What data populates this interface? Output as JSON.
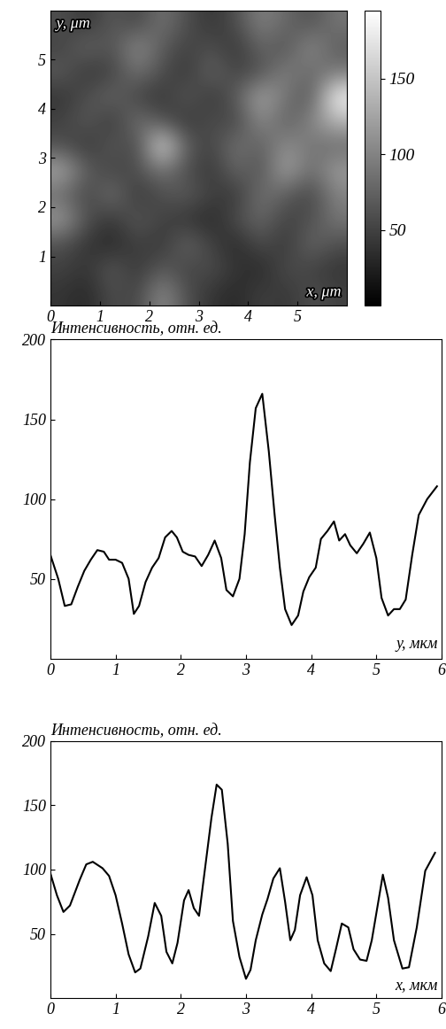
{
  "chart_data": [
    {
      "type": "heatmap",
      "xlabel": "x, μm",
      "ylabel": "y, μm",
      "color": "gray",
      "xlim": [
        0,
        6
      ],
      "ylim": [
        0,
        6
      ],
      "xticks": [
        0,
        1,
        2,
        3,
        4,
        5
      ],
      "yticks": [
        1,
        2,
        3,
        4,
        5
      ],
      "cells": [
        [
          40,
          30,
          60,
          50,
          110,
          60,
          40,
          30,
          50,
          40,
          60,
          50
        ],
        [
          50,
          40,
          70,
          40,
          70,
          50,
          60,
          40,
          30,
          60,
          50,
          40
        ],
        [
          60,
          40,
          30,
          50,
          40,
          80,
          50,
          30,
          60,
          40,
          80,
          60
        ],
        [
          120,
          60,
          40,
          70,
          50,
          40,
          30,
          60,
          80,
          50,
          60,
          90
        ],
        [
          80,
          50,
          90,
          40,
          60,
          70,
          50,
          40,
          90,
          70,
          50,
          100
        ],
        [
          130,
          70,
          50,
          60,
          90,
          60,
          40,
          80,
          60,
          130,
          80,
          120
        ],
        [
          60,
          40,
          70,
          50,
          180,
          70,
          50,
          90,
          70,
          110,
          90,
          80
        ],
        [
          50,
          70,
          40,
          90,
          60,
          40,
          60,
          50,
          110,
          70,
          100,
          140
        ],
        [
          40,
          60,
          80,
          50,
          40,
          70,
          40,
          70,
          130,
          90,
          60,
          190
        ],
        [
          70,
          40,
          50,
          90,
          60,
          40,
          80,
          50,
          60,
          100,
          80,
          90
        ],
        [
          50,
          80,
          60,
          110,
          70,
          50,
          60,
          40,
          80,
          60,
          110,
          70
        ],
        [
          60,
          40,
          70,
          50,
          90,
          60,
          40,
          60,
          100,
          80,
          60,
          90
        ]
      ],
      "colorbar_range": [
        0,
        195
      ],
      "colorbar_ticks": [
        50,
        100,
        150
      ]
    },
    {
      "type": "line",
      "ylabel": "Интенсивность, отн. ед.",
      "xlabel": "y, мкм",
      "color": "#000000",
      "xlim": [
        0,
        6
      ],
      "ylim": [
        0,
        200
      ],
      "xticks": [
        0,
        1,
        2,
        3,
        4,
        5,
        6
      ],
      "yticks": [
        50,
        100,
        150,
        200
      ],
      "x": [
        0,
        0.12,
        0.22,
        0.32,
        0.42,
        0.52,
        0.62,
        0.72,
        0.82,
        0.9,
        1.0,
        1.1,
        1.2,
        1.28,
        1.36,
        1.46,
        1.56,
        1.66,
        1.76,
        1.86,
        1.94,
        2.03,
        2.12,
        2.22,
        2.32,
        2.42,
        2.52,
        2.62,
        2.7,
        2.8,
        2.9,
        2.98,
        3.06,
        3.15,
        3.25,
        3.35,
        3.44,
        3.52,
        3.6,
        3.7,
        3.8,
        3.88,
        3.97,
        4.07,
        4.15,
        4.25,
        4.35,
        4.43,
        4.52,
        4.6,
        4.7,
        4.8,
        4.9,
        5.0,
        5.08,
        5.18,
        5.27,
        5.36,
        5.45,
        5.55,
        5.65,
        5.78,
        5.93
      ],
      "values": [
        65,
        50,
        33,
        34,
        45,
        55,
        62,
        68,
        67,
        62,
        62,
        60,
        50,
        28,
        33,
        48,
        57,
        63,
        76,
        80,
        76,
        67,
        65,
        64,
        58,
        65,
        74,
        63,
        43,
        39,
        50,
        78,
        123,
        157,
        166,
        130,
        90,
        57,
        31,
        21,
        27,
        42,
        51,
        57,
        75,
        80,
        86,
        74,
        78,
        71,
        66,
        72,
        79,
        63,
        38,
        27,
        31,
        31,
        37,
        65,
        90,
        100,
        108
      ]
    },
    {
      "type": "line",
      "ylabel": "Интенсивность, отн. ед.",
      "xlabel": "x, мкм",
      "color": "#000000",
      "xlim": [
        0,
        6
      ],
      "ylim": [
        0,
        200
      ],
      "xticks": [
        0,
        1,
        2,
        3,
        4,
        5,
        6
      ],
      "yticks": [
        50,
        100,
        150,
        200
      ],
      "x": [
        0,
        0.1,
        0.2,
        0.3,
        0.45,
        0.55,
        0.65,
        0.8,
        0.9,
        1.0,
        1.1,
        1.2,
        1.3,
        1.38,
        1.5,
        1.6,
        1.7,
        1.78,
        1.87,
        1.95,
        2.05,
        2.12,
        2.2,
        2.28,
        2.37,
        2.47,
        2.55,
        2.63,
        2.72,
        2.8,
        2.9,
        3.0,
        3.07,
        3.15,
        3.25,
        3.33,
        3.42,
        3.52,
        3.6,
        3.68,
        3.75,
        3.83,
        3.93,
        4.02,
        4.1,
        4.2,
        4.3,
        4.38,
        4.47,
        4.57,
        4.65,
        4.75,
        4.85,
        4.93,
        5.02,
        5.1,
        5.18,
        5.27,
        5.4,
        5.5,
        5.62,
        5.75,
        5.9
      ],
      "values": [
        97,
        80,
        67,
        72,
        92,
        104,
        106,
        101,
        95,
        80,
        58,
        34,
        20,
        23,
        48,
        74,
        64,
        36,
        27,
        43,
        76,
        84,
        70,
        64,
        100,
        140,
        166,
        162,
        120,
        60,
        32,
        15,
        22,
        45,
        65,
        77,
        93,
        101,
        75,
        45,
        53,
        80,
        94,
        80,
        45,
        27,
        21,
        38,
        58,
        55,
        38,
        30,
        29,
        45,
        72,
        96,
        78,
        45,
        23,
        24,
        55,
        99,
        113
      ]
    }
  ]
}
